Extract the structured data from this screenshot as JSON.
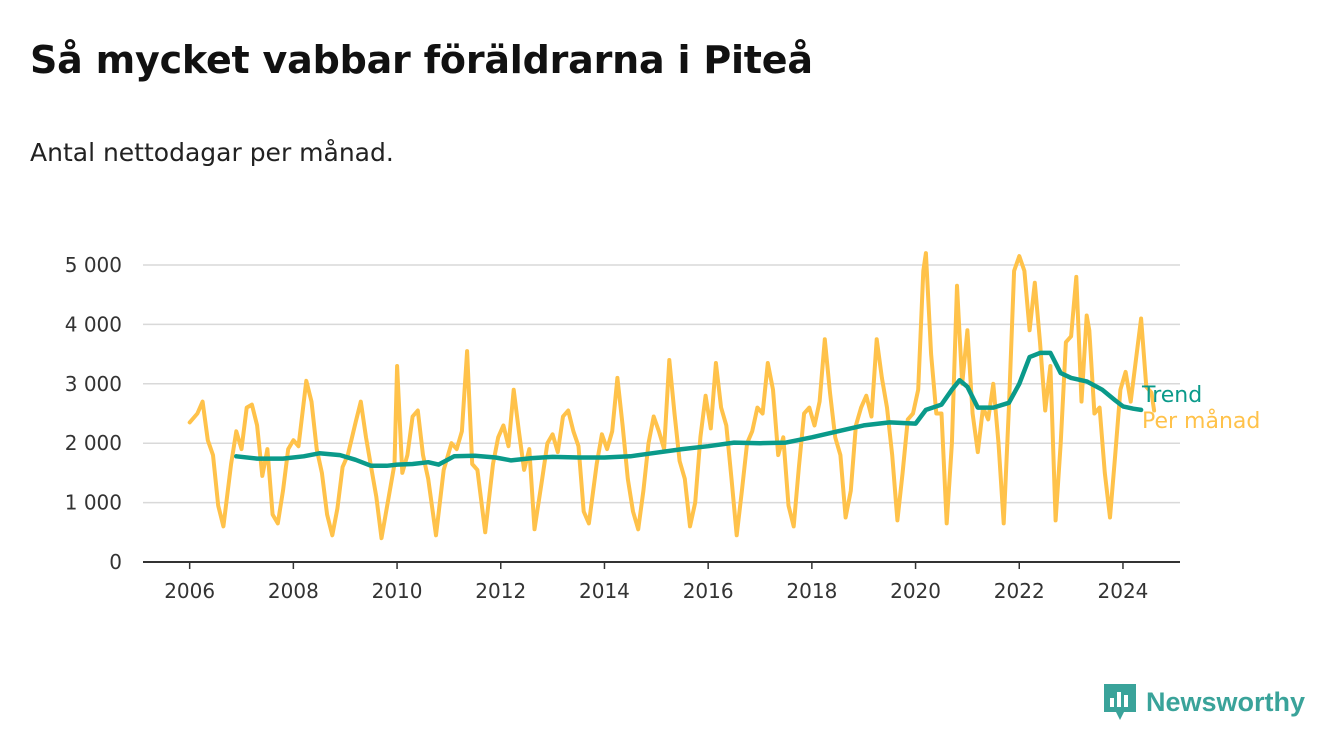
{
  "title": "Så mycket vabbar föräldrarna i Piteå",
  "subtitle": "Antal nettodagar per månad.",
  "brand": {
    "name": "Newsworthy",
    "icon": "bar-chart-speech-bubble-icon",
    "color": "#3aa39a"
  },
  "chart_data": {
    "type": "line",
    "x_ticks": [
      "2006",
      "2008",
      "2010",
      "2012",
      "2014",
      "2016",
      "2018",
      "2020",
      "2022",
      "2024"
    ],
    "y_ticks": [
      "0",
      "1 000",
      "2 000",
      "3 000",
      "4 000",
      "5 000"
    ],
    "xlim": [
      2005.1,
      2025.1
    ],
    "ylim": [
      0,
      5000
    ],
    "grid": true,
    "legend_placement": "right end of lines",
    "series": [
      {
        "name": "Trend",
        "color": "#0a9a8a",
        "points": [
          [
            2006.9,
            1780
          ],
          [
            2007.3,
            1740
          ],
          [
            2007.8,
            1740
          ],
          [
            2008.2,
            1780
          ],
          [
            2008.5,
            1830
          ],
          [
            2008.9,
            1800
          ],
          [
            2009.2,
            1720
          ],
          [
            2009.5,
            1620
          ],
          [
            2009.8,
            1620
          ],
          [
            2010.0,
            1640
          ],
          [
            2010.3,
            1650
          ],
          [
            2010.6,
            1680
          ],
          [
            2010.8,
            1640
          ],
          [
            2011.1,
            1780
          ],
          [
            2011.5,
            1790
          ],
          [
            2011.9,
            1760
          ],
          [
            2012.2,
            1710
          ],
          [
            2012.6,
            1750
          ],
          [
            2013.0,
            1770
          ],
          [
            2013.5,
            1760
          ],
          [
            2014.0,
            1760
          ],
          [
            2014.5,
            1780
          ],
          [
            2015.0,
            1840
          ],
          [
            2015.5,
            1900
          ],
          [
            2016.0,
            1950
          ],
          [
            2016.5,
            2010
          ],
          [
            2017.0,
            2000
          ],
          [
            2017.5,
            2010
          ],
          [
            2018.0,
            2100
          ],
          [
            2018.5,
            2200
          ],
          [
            2019.0,
            2300
          ],
          [
            2019.5,
            2350
          ],
          [
            2020.0,
            2330
          ],
          [
            2020.2,
            2560
          ],
          [
            2020.5,
            2650
          ],
          [
            2020.7,
            2900
          ],
          [
            2020.85,
            3060
          ],
          [
            2021.0,
            2950
          ],
          [
            2021.2,
            2600
          ],
          [
            2021.5,
            2600
          ],
          [
            2021.8,
            2680
          ],
          [
            2022.0,
            3000
          ],
          [
            2022.2,
            3450
          ],
          [
            2022.4,
            3520
          ],
          [
            2022.6,
            3520
          ],
          [
            2022.8,
            3180
          ],
          [
            2023.0,
            3100
          ],
          [
            2023.3,
            3040
          ],
          [
            2023.6,
            2900
          ],
          [
            2023.85,
            2720
          ],
          [
            2024.0,
            2620
          ],
          [
            2024.2,
            2580
          ],
          [
            2024.35,
            2560
          ]
        ]
      },
      {
        "name": "Per månad",
        "color": "#ffc24a",
        "points": [
          [
            2006.0,
            2350
          ],
          [
            2006.15,
            2500
          ],
          [
            2006.25,
            2700
          ],
          [
            2006.35,
            2050
          ],
          [
            2006.45,
            1800
          ],
          [
            2006.55,
            950
          ],
          [
            2006.65,
            600
          ],
          [
            2006.8,
            1650
          ],
          [
            2006.9,
            2200
          ],
          [
            2007.0,
            1900
          ],
          [
            2007.1,
            2600
          ],
          [
            2007.2,
            2650
          ],
          [
            2007.3,
            2300
          ],
          [
            2007.4,
            1450
          ],
          [
            2007.5,
            1900
          ],
          [
            2007.6,
            800
          ],
          [
            2007.7,
            650
          ],
          [
            2007.8,
            1200
          ],
          [
            2007.9,
            1900
          ],
          [
            2008.0,
            2050
          ],
          [
            2008.1,
            1950
          ],
          [
            2008.25,
            3050
          ],
          [
            2008.35,
            2700
          ],
          [
            2008.45,
            1900
          ],
          [
            2008.55,
            1500
          ],
          [
            2008.65,
            800
          ],
          [
            2008.75,
            450
          ],
          [
            2008.85,
            900
          ],
          [
            2008.95,
            1600
          ],
          [
            2009.05,
            1800
          ],
          [
            2009.2,
            2350
          ],
          [
            2009.3,
            2700
          ],
          [
            2009.4,
            2100
          ],
          [
            2009.5,
            1600
          ],
          [
            2009.6,
            1100
          ],
          [
            2009.7,
            400
          ],
          [
            2009.8,
            900
          ],
          [
            2009.95,
            1650
          ],
          [
            2010.0,
            3300
          ],
          [
            2010.1,
            1500
          ],
          [
            2010.2,
            1800
          ],
          [
            2010.3,
            2450
          ],
          [
            2010.4,
            2550
          ],
          [
            2010.5,
            1800
          ],
          [
            2010.6,
            1400
          ],
          [
            2010.75,
            450
          ],
          [
            2010.9,
            1550
          ],
          [
            2011.05,
            2000
          ],
          [
            2011.15,
            1900
          ],
          [
            2011.25,
            2200
          ],
          [
            2011.35,
            3550
          ],
          [
            2011.45,
            1650
          ],
          [
            2011.55,
            1550
          ],
          [
            2011.7,
            500
          ],
          [
            2011.85,
            1650
          ],
          [
            2011.95,
            2100
          ],
          [
            2012.05,
            2300
          ],
          [
            2012.15,
            1950
          ],
          [
            2012.25,
            2900
          ],
          [
            2012.35,
            2200
          ],
          [
            2012.45,
            1550
          ],
          [
            2012.55,
            1900
          ],
          [
            2012.65,
            550
          ],
          [
            2012.8,
            1400
          ],
          [
            2012.9,
            2000
          ],
          [
            2013.0,
            2150
          ],
          [
            2013.1,
            1850
          ],
          [
            2013.2,
            2450
          ],
          [
            2013.3,
            2550
          ],
          [
            2013.4,
            2200
          ],
          [
            2013.5,
            1950
          ],
          [
            2013.6,
            850
          ],
          [
            2013.7,
            650
          ],
          [
            2013.85,
            1650
          ],
          [
            2013.95,
            2150
          ],
          [
            2014.05,
            1900
          ],
          [
            2014.15,
            2200
          ],
          [
            2014.25,
            3100
          ],
          [
            2014.35,
            2300
          ],
          [
            2014.45,
            1400
          ],
          [
            2014.55,
            850
          ],
          [
            2014.65,
            550
          ],
          [
            2014.75,
            1200
          ],
          [
            2014.85,
            2000
          ],
          [
            2014.95,
            2450
          ],
          [
            2015.05,
            2200
          ],
          [
            2015.15,
            1900
          ],
          [
            2015.25,
            3400
          ],
          [
            2015.35,
            2500
          ],
          [
            2015.45,
            1700
          ],
          [
            2015.55,
            1400
          ],
          [
            2015.65,
            600
          ],
          [
            2015.75,
            1000
          ],
          [
            2015.85,
            2100
          ],
          [
            2015.95,
            2800
          ],
          [
            2016.05,
            2250
          ],
          [
            2016.15,
            3350
          ],
          [
            2016.25,
            2600
          ],
          [
            2016.35,
            2300
          ],
          [
            2016.45,
            1400
          ],
          [
            2016.55,
            450
          ],
          [
            2016.65,
            1200
          ],
          [
            2016.75,
            2000
          ],
          [
            2016.85,
            2200
          ],
          [
            2016.95,
            2600
          ],
          [
            2017.05,
            2500
          ],
          [
            2017.15,
            3350
          ],
          [
            2017.25,
            2900
          ],
          [
            2017.35,
            1800
          ],
          [
            2017.45,
            2100
          ],
          [
            2017.55,
            950
          ],
          [
            2017.65,
            600
          ],
          [
            2017.75,
            1600
          ],
          [
            2017.85,
            2500
          ],
          [
            2017.95,
            2600
          ],
          [
            2018.05,
            2300
          ],
          [
            2018.15,
            2700
          ],
          [
            2018.25,
            3750
          ],
          [
            2018.35,
            2850
          ],
          [
            2018.45,
            2100
          ],
          [
            2018.55,
            1800
          ],
          [
            2018.65,
            750
          ],
          [
            2018.75,
            1200
          ],
          [
            2018.85,
            2300
          ],
          [
            2018.95,
            2600
          ],
          [
            2019.05,
            2800
          ],
          [
            2019.15,
            2450
          ],
          [
            2019.25,
            3750
          ],
          [
            2019.35,
            3100
          ],
          [
            2019.45,
            2600
          ],
          [
            2019.55,
            1800
          ],
          [
            2019.65,
            700
          ],
          [
            2019.75,
            1500
          ],
          [
            2019.85,
            2400
          ],
          [
            2019.95,
            2500
          ],
          [
            2020.05,
            2900
          ],
          [
            2020.15,
            4900
          ],
          [
            2020.2,
            5200
          ],
          [
            2020.3,
            3500
          ],
          [
            2020.4,
            2500
          ],
          [
            2020.5,
            2500
          ],
          [
            2020.6,
            650
          ],
          [
            2020.7,
            2000
          ],
          [
            2020.8,
            4650
          ],
          [
            2020.9,
            3000
          ],
          [
            2021.0,
            3900
          ],
          [
            2021.1,
            2500
          ],
          [
            2021.2,
            1850
          ],
          [
            2021.3,
            2600
          ],
          [
            2021.4,
            2400
          ],
          [
            2021.5,
            3000
          ],
          [
            2021.6,
            2000
          ],
          [
            2021.7,
            650
          ],
          [
            2021.8,
            2600
          ],
          [
            2021.9,
            4900
          ],
          [
            2022.0,
            5150
          ],
          [
            2022.1,
            4900
          ],
          [
            2022.2,
            3900
          ],
          [
            2022.3,
            4700
          ],
          [
            2022.4,
            3700
          ],
          [
            2022.5,
            2550
          ],
          [
            2022.6,
            3300
          ],
          [
            2022.7,
            700
          ],
          [
            2022.8,
            2000
          ],
          [
            2022.9,
            3700
          ],
          [
            2023.0,
            3800
          ],
          [
            2023.1,
            4800
          ],
          [
            2023.2,
            2700
          ],
          [
            2023.3,
            4150
          ],
          [
            2023.35,
            3900
          ],
          [
            2023.45,
            2500
          ],
          [
            2023.55,
            2600
          ],
          [
            2023.65,
            1500
          ],
          [
            2023.75,
            750
          ],
          [
            2023.85,
            1800
          ],
          [
            2023.95,
            2900
          ],
          [
            2024.05,
            3200
          ],
          [
            2024.15,
            2700
          ],
          [
            2024.25,
            3400
          ],
          [
            2024.35,
            4100
          ],
          [
            2024.45,
            2950
          ],
          [
            2024.55,
            2850
          ],
          [
            2024.6,
            2550
          ]
        ]
      }
    ]
  }
}
